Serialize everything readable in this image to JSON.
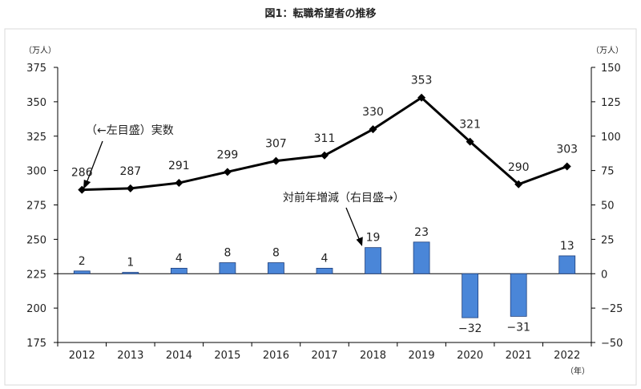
{
  "chart_data": {
    "type": "bar+line",
    "title": "図1：転職希望者の推移",
    "left_axis": {
      "unit": "（万人）",
      "min": 175,
      "max": 375,
      "ticks": [
        175,
        200,
        225,
        250,
        275,
        300,
        325,
        350,
        375
      ]
    },
    "right_axis": {
      "unit": "（万人）",
      "min": -50,
      "max": 150,
      "ticks": [
        -50,
        -25,
        0,
        25,
        50,
        75,
        100,
        125,
        150
      ]
    },
    "x_unit": "（年）",
    "categories": [
      "2012",
      "2013",
      "2014",
      "2015",
      "2016",
      "2017",
      "2018",
      "2019",
      "2020",
      "2021",
      "2022"
    ],
    "series": [
      {
        "name": "（←左目盛）実数",
        "type": "line",
        "axis": "left",
        "color": "#000000",
        "values": [
          286,
          287,
          291,
          299,
          307,
          311,
          330,
          353,
          321,
          290,
          303
        ]
      },
      {
        "name": "対前年増減（右目盛→）",
        "type": "bar",
        "axis": "right",
        "color": "#4a86d8",
        "values": [
          2,
          1,
          4,
          8,
          8,
          4,
          19,
          23,
          -32,
          -31,
          13
        ]
      }
    ],
    "data_label_prefix_negative": "−",
    "grid": false
  }
}
